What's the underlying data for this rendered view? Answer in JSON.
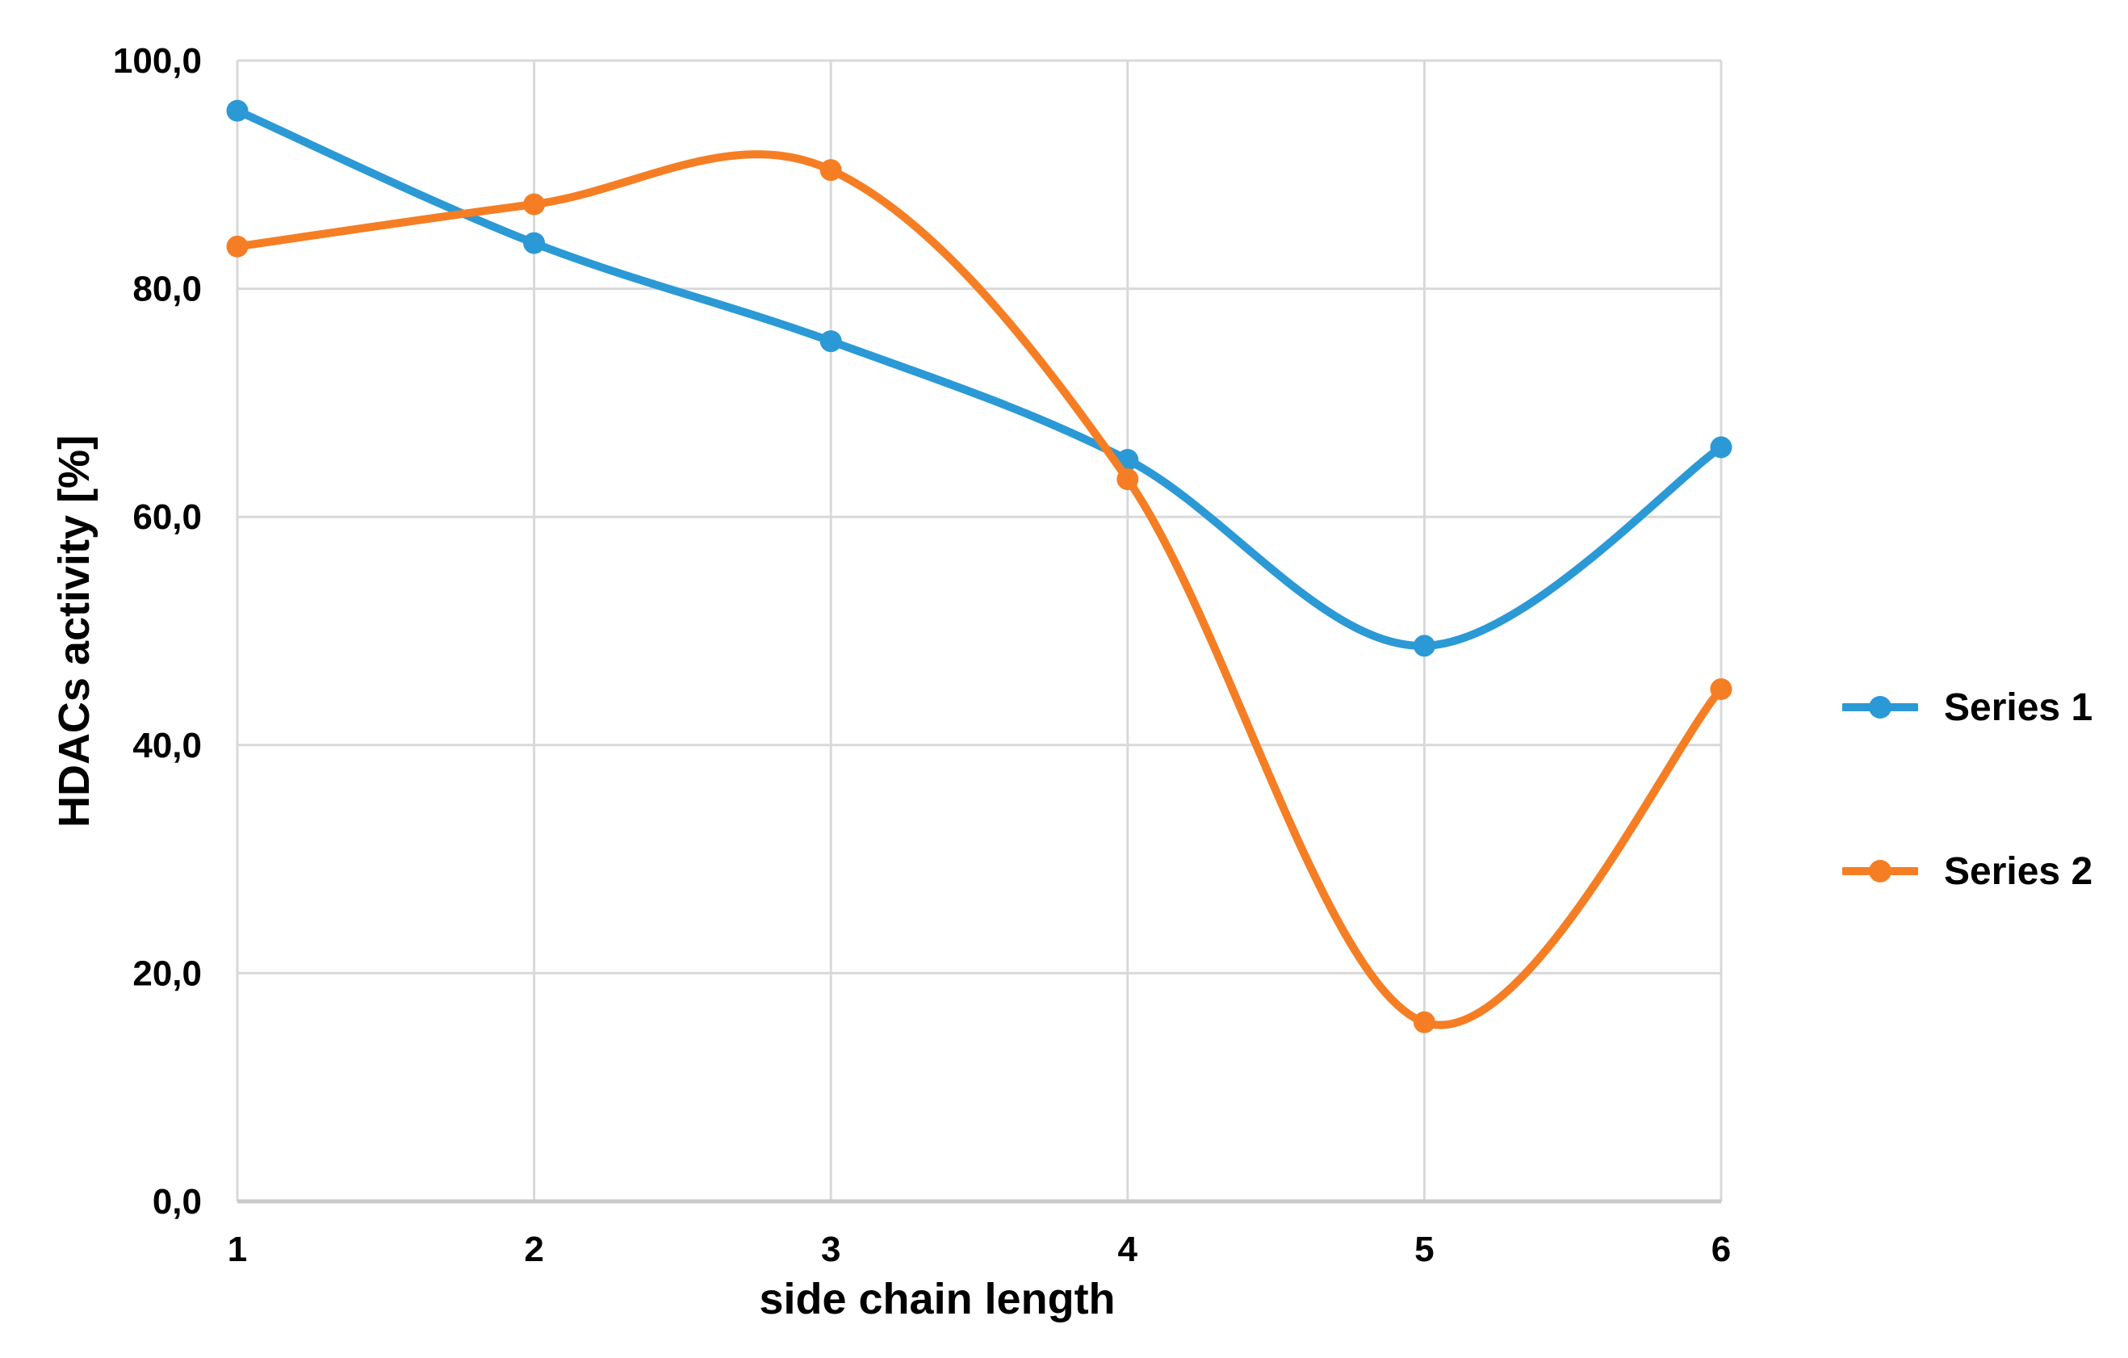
{
  "chart_data": {
    "type": "line",
    "title": "",
    "xlabel": "side chain length",
    "ylabel": "HDACs activity [%]",
    "categories": [
      1,
      2,
      3,
      4,
      5,
      6
    ],
    "x_tick_labels": [
      "1",
      "2",
      "3",
      "4",
      "5",
      "6"
    ],
    "y_ticks": [
      0,
      20,
      40,
      60,
      80,
      100
    ],
    "y_tick_labels": [
      "0,0",
      "20,0",
      "40,0",
      "60,0",
      "80,0",
      "100,0"
    ],
    "ylim": [
      0,
      100
    ],
    "grid": true,
    "smooth_lines": true,
    "legend_position": "right",
    "series": [
      {
        "name": "Series 1",
        "color": "#2B99D6",
        "values": [
          95.6,
          84.0,
          75.4,
          65.0,
          48.7,
          66.1
        ]
      },
      {
        "name": "Series 2",
        "color": "#F57E24",
        "values": [
          83.7,
          87.4,
          90.4,
          63.3,
          15.7,
          44.9
        ]
      }
    ],
    "colors": {
      "background": "#FFFFFF",
      "gridline": "#D9D9D9",
      "axis_line": "#C9C9C9",
      "text": "#000000"
    }
  }
}
